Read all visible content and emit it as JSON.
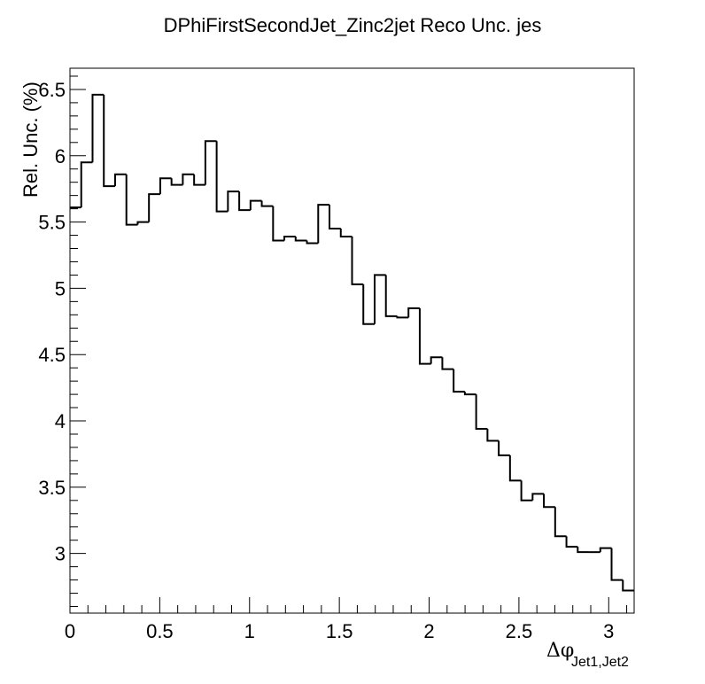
{
  "chart_data": {
    "type": "histogram-step",
    "title": "DPhiFirstSecondJet_Zinc2jet Reco Unc. jes",
    "ylabel": "Rel. Unc. (%)",
    "xlabel_main": "Δφ",
    "xlabel_sub": "Jet1,Jet2",
    "xlim": [
      0,
      3.1416
    ],
    "ylim": [
      2.55,
      6.66
    ],
    "x_ticks": [
      0,
      0.5,
      1,
      1.5,
      2,
      2.5,
      3
    ],
    "x_tick_labels": [
      "0",
      "0.5",
      "1",
      "1.5",
      "2",
      "2.5",
      "3"
    ],
    "y_ticks": [
      3,
      3.5,
      4,
      4.5,
      5,
      5.5,
      6,
      6.5
    ],
    "y_tick_labels": [
      "3",
      "3.5",
      "4",
      "4.5",
      "5",
      "5.5",
      "6",
      "6.5"
    ],
    "bin_edges": [
      0,
      0.0628,
      0.1257,
      0.1885,
      0.2513,
      0.3142,
      0.377,
      0.4398,
      0.5027,
      0.5655,
      0.6283,
      0.6912,
      0.754,
      0.8168,
      0.8796,
      0.9425,
      1.0053,
      1.0681,
      1.131,
      1.1938,
      1.2566,
      1.3195,
      1.3823,
      1.4451,
      1.508,
      1.5708,
      1.6336,
      1.6965,
      1.7593,
      1.8221,
      1.885,
      1.9478,
      2.0106,
      2.0735,
      2.1363,
      2.1991,
      2.2619,
      2.3248,
      2.3876,
      2.4504,
      2.5133,
      2.5761,
      2.6389,
      2.7018,
      2.7646,
      2.8274,
      2.8903,
      2.9531,
      3.0159,
      3.0788,
      3.1416
    ],
    "values": [
      5.61,
      5.95,
      6.46,
      5.77,
      5.86,
      5.48,
      5.5,
      5.71,
      5.83,
      5.78,
      5.86,
      5.78,
      6.11,
      5.58,
      5.73,
      5.59,
      5.66,
      5.62,
      5.36,
      5.39,
      5.36,
      5.34,
      5.63,
      5.45,
      5.39,
      5.03,
      4.73,
      5.1,
      4.79,
      4.78,
      4.85,
      4.43,
      4.48,
      4.39,
      4.22,
      4.2,
      3.94,
      3.85,
      3.74,
      3.55,
      3.4,
      3.45,
      3.35,
      3.13,
      3.05,
      3.01,
      3.01,
      3.04,
      2.8,
      2.72
    ]
  }
}
